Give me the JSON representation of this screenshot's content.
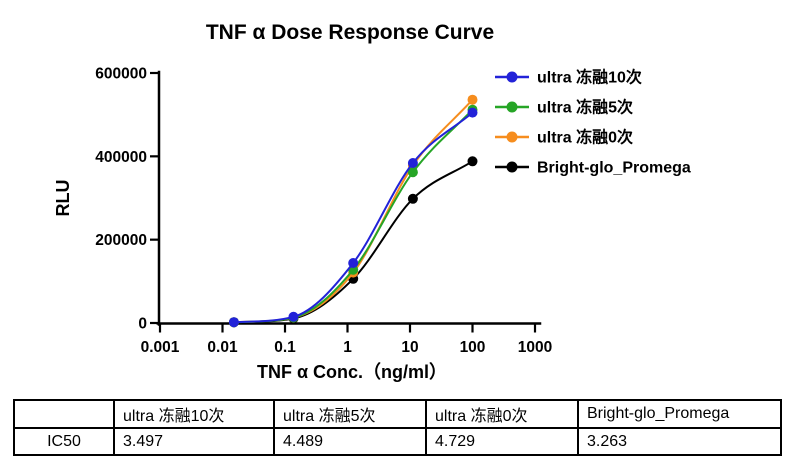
{
  "title": "TNF α Dose Response Curve",
  "chart_data": {
    "type": "line",
    "title": "TNF α Dose Response Curve",
    "xlabel": "TNF α Conc.（ng/ml）",
    "ylabel": "RLU",
    "x_scale": "log",
    "xlim": [
      0.001,
      1000
    ],
    "ylim": [
      0,
      600000
    ],
    "x_tick_labels": [
      "0.001",
      "0.01",
      "0.1",
      "1",
      "10",
      "100",
      "1000"
    ],
    "y_ticks": [
      0,
      200000,
      400000,
      600000
    ],
    "y_tick_labels": [
      "0",
      "200000",
      "400000",
      "600000"
    ],
    "grid": false,
    "legend_position": "top-right",
    "x": [
      0.0152,
      0.137,
      1.235,
      11.11,
      100
    ],
    "series": [
      {
        "name": "ultra 冻融10次",
        "color": "#2222d8",
        "values": [
          2000,
          15000,
          144000,
          384000,
          505000
        ]
      },
      {
        "name": "ultra 冻融5次",
        "color": "#26a526",
        "values": [
          2000,
          13000,
          128000,
          362000,
          512000
        ]
      },
      {
        "name": "ultra 冻融0次",
        "color": "#f68d1e",
        "values": [
          2000,
          13000,
          121000,
          378000,
          536000
        ]
      },
      {
        "name": "Bright-glo_Promega",
        "color": "#000000",
        "values": [
          1500,
          11000,
          106000,
          298000,
          388000
        ]
      }
    ]
  },
  "table": {
    "headers": [
      "",
      "ultra 冻融10次",
      "ultra 冻融5次",
      "ultra 冻融0次",
      "Bright-glo_Promega"
    ],
    "rows": [
      {
        "label": "IC50",
        "values": [
          "3.497",
          "4.489",
          "4.729",
          "3.263"
        ]
      }
    ]
  }
}
